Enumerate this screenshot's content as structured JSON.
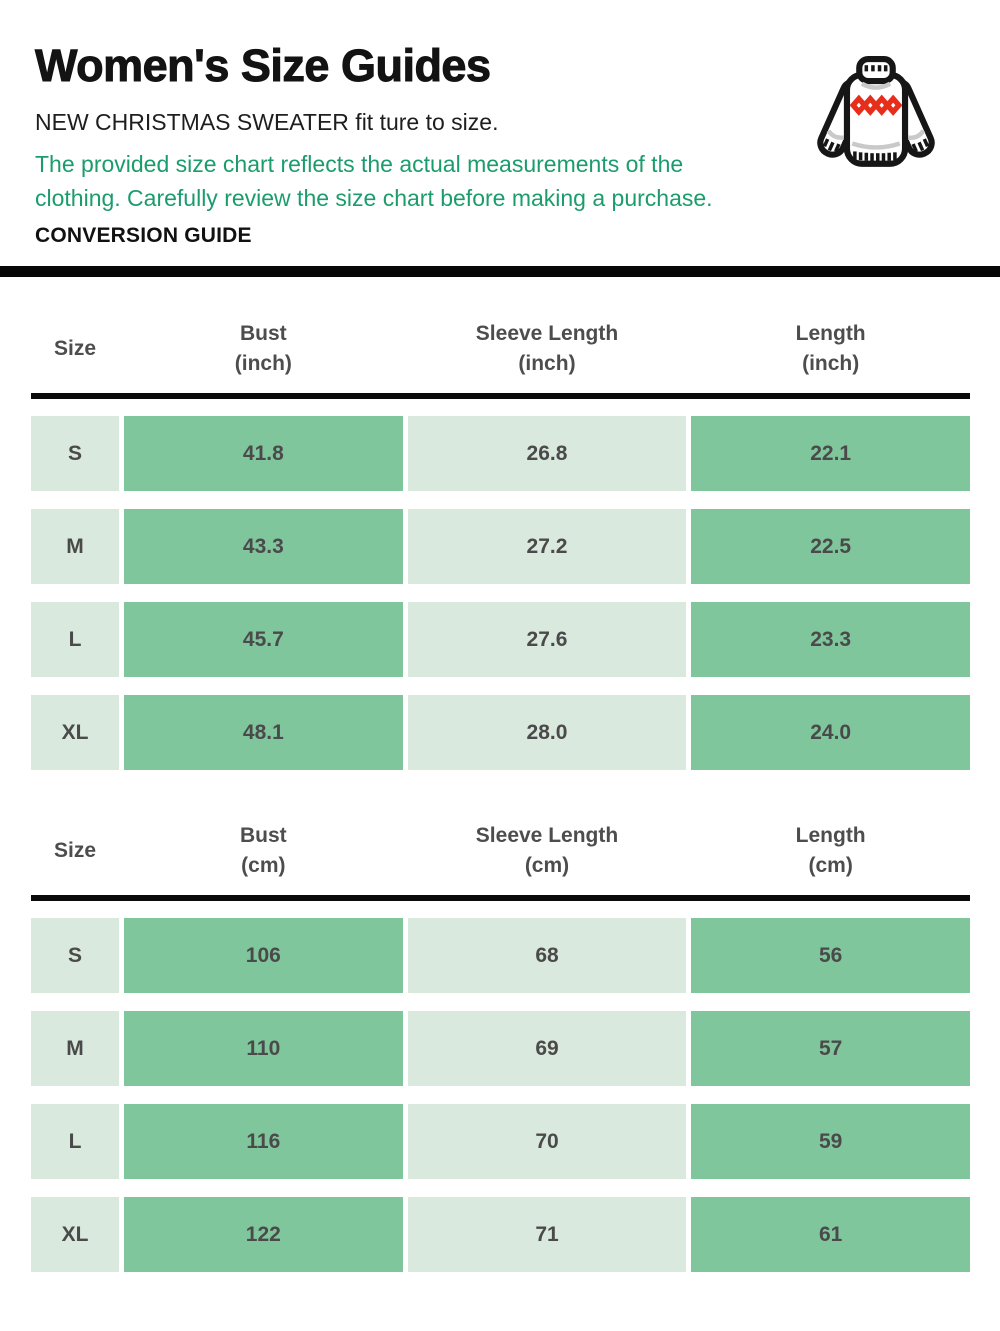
{
  "header": {
    "title": "Women's Size Guides",
    "subtitle": "NEW CHRISTMAS SWEATER fit ture to size.",
    "note": "The provided size chart reflects the actual measurements of the clothing. Carefully review the size chart before making a purchase.",
    "conversion_label": "CONVERSION GUIDE",
    "icon": "sweater-icon"
  },
  "colors": {
    "note_green": "#1c9c6e",
    "cell_light_green": "#d9e9de",
    "cell_medium_green": "#80c69c",
    "cell_text_gray": "#4a4a4a",
    "divider_black": "#070707",
    "sweater_diamond_red": "#e62e1b"
  },
  "tables": [
    {
      "name": "inches",
      "columns": [
        {
          "label": "Size",
          "unit": ""
        },
        {
          "label": "Bust",
          "unit": "(inch)"
        },
        {
          "label": "Sleeve Length",
          "unit": "(inch)"
        },
        {
          "label": "Length",
          "unit": "(inch)"
        }
      ],
      "rows": [
        [
          "S",
          "41.8",
          "26.8",
          "22.1"
        ],
        [
          "M",
          "43.3",
          "27.2",
          "22.5"
        ],
        [
          "L",
          "45.7",
          "27.6",
          "23.3"
        ],
        [
          "XL",
          "48.1",
          "28.0",
          "24.0"
        ]
      ]
    },
    {
      "name": "centimeters",
      "columns": [
        {
          "label": "Size",
          "unit": ""
        },
        {
          "label": "Bust",
          "unit": "(cm)"
        },
        {
          "label": "Sleeve Length",
          "unit": "(cm)"
        },
        {
          "label": "Length",
          "unit": "(cm)"
        }
      ],
      "rows": [
        [
          "S",
          "106",
          "68",
          "56"
        ],
        [
          "M",
          "110",
          "69",
          "57"
        ],
        [
          "L",
          "116",
          "70",
          "59"
        ],
        [
          "XL",
          "122",
          "71",
          "61"
        ]
      ]
    }
  ]
}
